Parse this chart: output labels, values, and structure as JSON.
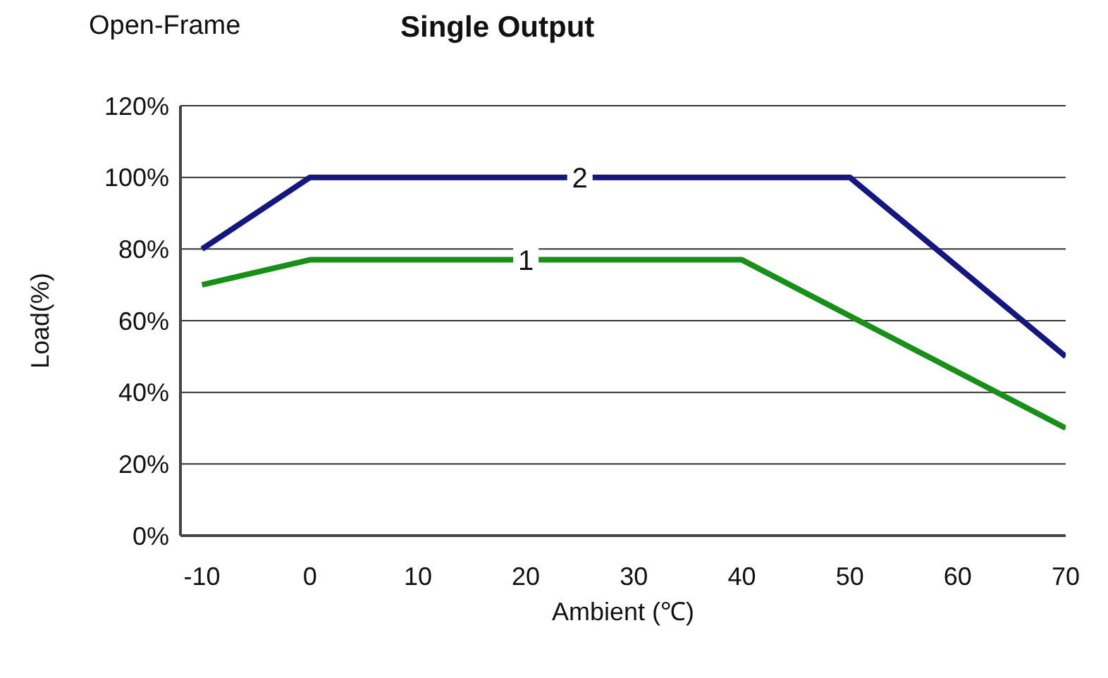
{
  "chart_data": {
    "type": "line",
    "title": "Single Output",
    "subtitle": "Open-Frame",
    "xlabel": "Ambient (℃)",
    "ylabel": "Load(%)",
    "series": [
      {
        "name": "1",
        "color": "#189018",
        "x": [
          -10,
          0,
          40,
          70
        ],
        "values": [
          70,
          77,
          77,
          30
        ]
      },
      {
        "name": "2",
        "color": "#161680",
        "x": [
          -10,
          0,
          50,
          70
        ],
        "values": [
          80,
          100,
          100,
          50
        ]
      }
    ],
    "xlim": [
      -12,
      70
    ],
    "xticks": [
      -10,
      0,
      10,
      20,
      30,
      40,
      50,
      60,
      70
    ],
    "ylim": [
      0,
      120
    ],
    "yticks": [
      {
        "value": 0,
        "label": "0%"
      },
      {
        "value": 20,
        "label": "20%"
      },
      {
        "value": 40,
        "label": "40%"
      },
      {
        "value": 60,
        "label": "60%"
      },
      {
        "value": 80,
        "label": "80%"
      },
      {
        "value": 100,
        "label": "100%"
      },
      {
        "value": 120,
        "label": "120%"
      }
    ],
    "grid": "y",
    "marker": "none",
    "line_style": "solid"
  }
}
